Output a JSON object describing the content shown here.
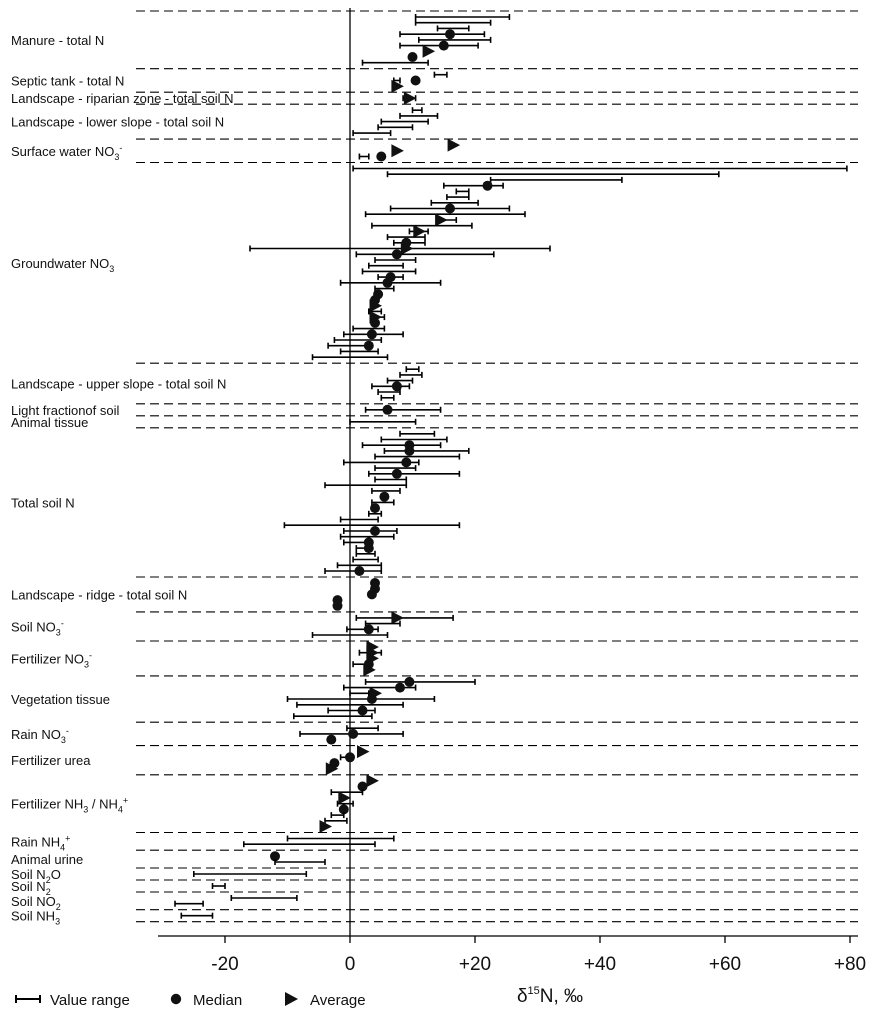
{
  "chart_data": {
    "type": "range",
    "xlabel_main": "δ",
    "xlabel_sup": "15",
    "xlabel_rest": "N, ‰",
    "xlim": [
      -30,
      80
    ],
    "xticks": [
      -20,
      0,
      20,
      40,
      60,
      80
    ],
    "xtick_labels": [
      "-20",
      "0",
      "+20",
      "+40",
      "+60",
      "+80"
    ],
    "legend": [
      {
        "symbol": "range",
        "label": "Value range"
      },
      {
        "symbol": "median",
        "label": "Median"
      },
      {
        "symbol": "average",
        "label": "Average"
      }
    ],
    "groups": [
      {
        "label": "Manure - total N",
        "rows": [
          {
            "min": 10.5,
            "max": 25.5
          },
          {
            "min": 10.5,
            "max": 22.5
          },
          {
            "min": 14,
            "max": 19
          },
          {
            "min": 8,
            "max": 21.5,
            "median": 16
          },
          {
            "min": 11,
            "max": 22.5
          },
          {
            "min": 8,
            "max": 20.5,
            "median": 15
          },
          {
            "average": 12.5
          },
          {
            "median": 10
          },
          {
            "min": 2,
            "max": 12.5
          }
        ]
      },
      {
        "label": "Septic tank - total N",
        "rows": [
          {
            "min": 13.5,
            "max": 15.5
          },
          {
            "min": 7,
            "max": 8,
            "median": 10.5
          },
          {
            "average": 7.5
          }
        ]
      },
      {
        "label": "Landscape - riparian zone - total soil N",
        "rows": [
          {
            "min": 8.5,
            "max": 10.5,
            "average": 9.5
          }
        ]
      },
      {
        "label": "Landscape - lower slope - total soil N",
        "rows": [
          {
            "min": 10,
            "max": 11.5
          },
          {
            "min": 8,
            "max": 14
          },
          {
            "min": 5,
            "max": 12.5
          },
          {
            "min": 4.5,
            "max": 10
          },
          {
            "min": 0.5,
            "max": 6.5
          }
        ]
      },
      {
        "label": "Surface water NO3-",
        "rows": [
          {
            "average": 16.5
          },
          {
            "average": 7.5
          },
          {
            "min": 1.5,
            "max": 3,
            "median": 5
          }
        ]
      },
      {
        "label": "Groundwater NO3",
        "rows": [
          {
            "min": 0.5,
            "max": 79.5
          },
          {
            "min": 6,
            "max": 59
          },
          {
            "min": 22.5,
            "max": 43.5
          },
          {
            "min": 15,
            "max": 24.5,
            "median": 22
          },
          {
            "min": 17,
            "max": 19
          },
          {
            "min": 15.5,
            "max": 19
          },
          {
            "min": 13,
            "max": 20.5
          },
          {
            "min": 6.5,
            "max": 25.5,
            "median": 16
          },
          {
            "min": 2.5,
            "max": 28
          },
          {
            "min": 14,
            "max": 17,
            "average": 14.5
          },
          {
            "min": 3.5,
            "max": 19.5
          },
          {
            "min": 9.5,
            "max": 12.5,
            "average": 11
          },
          {
            "min": 6,
            "max": 12
          },
          {
            "min": 7,
            "max": 12,
            "median": 9
          },
          {
            "min": -16,
            "max": 32,
            "average": 9
          },
          {
            "min": 1,
            "max": 23,
            "median": 7.5
          },
          {
            "min": 4,
            "max": 10.5
          },
          {
            "min": 3,
            "max": 8.5
          },
          {
            "min": 2,
            "max": 10.5
          },
          {
            "min": 4.5,
            "max": 8.5,
            "median": 6.5
          },
          {
            "min": -1.5,
            "max": 14.5,
            "median": 6
          },
          {
            "min": 4,
            "max": 7
          },
          {
            "median": 4.5
          },
          {
            "median": 4
          },
          {
            "average": 4
          },
          {
            "min": 3,
            "max": 5
          },
          {
            "min": 3.5,
            "max": 5.5,
            "average": 4
          },
          {
            "median": 4
          },
          {
            "min": 0.5,
            "max": 5.5
          },
          {
            "min": -1,
            "max": 8.5,
            "median": 3.5
          },
          {
            "min": -2.5,
            "max": 5
          },
          {
            "min": -3.5,
            "max": 3,
            "median": 3
          },
          {
            "min": -1.5,
            "max": 4.5
          },
          {
            "min": -6,
            "max": 6
          }
        ]
      },
      {
        "label": "Landscape - upper slope - total soil N",
        "rows": [
          {
            "min": 9,
            "max": 11
          },
          {
            "min": 8,
            "max": 11.5
          },
          {
            "min": 6,
            "max": 10
          },
          {
            "min": 3.5,
            "max": 9.5,
            "median": 7.5
          },
          {
            "min": 4.5,
            "max": 8
          },
          {
            "min": 5,
            "max": 7
          }
        ]
      },
      {
        "label": "Light fractionof soil",
        "rows": [
          {
            "min": 2.5,
            "max": 14.5,
            "median": 6
          }
        ]
      },
      {
        "label": "Animal tissue",
        "rows": [
          {
            "min": 0,
            "max": 10.5
          }
        ]
      },
      {
        "label": "Total soil N",
        "rows": [
          {
            "min": 8,
            "max": 13.5
          },
          {
            "min": 5,
            "max": 15.5
          },
          {
            "min": 2,
            "max": 14.5,
            "median": 9.5
          },
          {
            "min": 5.5,
            "max": 19,
            "median": 9.5
          },
          {
            "min": 4,
            "max": 17.5
          },
          {
            "min": -1,
            "max": 11,
            "median": 9
          },
          {
            "min": 4,
            "max": 10.5
          },
          {
            "min": 3,
            "max": 17.5,
            "median": 7.5
          },
          {
            "min": 4,
            "max": 9
          },
          {
            "min": -4,
            "max": 9
          },
          {
            "min": 3.5,
            "max": 8
          },
          {
            "median": 5.5
          },
          {
            "min": 3.5,
            "max": 7
          },
          {
            "median": 4
          },
          {
            "min": 3,
            "max": 5
          },
          {
            "min": -1.5,
            "max": 4.5
          },
          {
            "min": -10.5,
            "max": 17.5
          },
          {
            "min": -1,
            "max": 7.5,
            "median": 4
          },
          {
            "min": -1.5,
            "max": 7
          },
          {
            "min": -1,
            "max": 3.5,
            "median": 3
          },
          {
            "min": 1,
            "max": 3.5,
            "median": 3
          },
          {
            "min": 1,
            "max": 4
          },
          {
            "min": 0.5,
            "max": 4.5
          },
          {
            "min": -2,
            "max": 5
          },
          {
            "min": -4,
            "max": 5,
            "median": 1.5
          }
        ]
      },
      {
        "label": "Landscape  - ridge - total soil N",
        "rows": [
          {
            "median": 4
          },
          {
            "median": 4
          },
          {
            "median": 3.5
          },
          {
            "median": -2
          },
          {
            "median": -2
          }
        ]
      },
      {
        "label": "Soil NO3-",
        "rows": [
          {
            "min": 1,
            "max": 16.5,
            "average": 7.5
          },
          {
            "min": 2.5,
            "max": 8
          },
          {
            "min": -0.5,
            "max": 4.5,
            "median": 3
          },
          {
            "min": -6,
            "max": 6
          }
        ]
      },
      {
        "label": "Fertilizer NO3-",
        "rows": [
          {
            "average": 3.5
          },
          {
            "min": 1.5,
            "max": 5,
            "average": 3.5
          },
          {
            "average": 3.5
          },
          {
            "min": 0.5,
            "max": 3,
            "median": 3
          },
          {
            "average": 3
          }
        ]
      },
      {
        "label": "Vegetation tissue",
        "rows": [
          {
            "min": 2.5,
            "max": 20,
            "median": 9.5
          },
          {
            "min": -1,
            "max": 10.5,
            "median": 8
          },
          {
            "min": 0,
            "max": 3,
            "average": 4
          },
          {
            "min": -10,
            "max": 13.5,
            "median": 3.5
          },
          {
            "min": -8.5,
            "max": 8.5
          },
          {
            "min": -3.5,
            "max": 4,
            "median": 2
          },
          {
            "min": -9,
            "max": 3.5
          }
        ]
      },
      {
        "label": "Rain NO3-",
        "rows": [
          {
            "min": -0.5,
            "max": 4.5
          },
          {
            "min": -8,
            "max": 8.5,
            "median": 0.5
          },
          {
            "median": -3
          }
        ]
      },
      {
        "label": "Fertilizer urea",
        "rows": [
          {
            "average": 2
          },
          {
            "min": -1.5,
            "max": 0,
            "median": 0
          },
          {
            "median": -2.5
          },
          {
            "average": -3
          }
        ]
      },
      {
        "label": "Fertilizer NH3 / NH4+",
        "rows": [
          {
            "average": 3.5
          },
          {
            "median": 2
          },
          {
            "min": -3,
            "max": 2
          },
          {
            "average": -1
          },
          {
            "min": -2,
            "max": 0.5
          },
          {
            "median": -1
          },
          {
            "min": -3,
            "max": -1
          },
          {
            "min": -4,
            "max": -0.5
          },
          {
            "average": -4
          }
        ]
      },
      {
        "label": "Rain NH4+",
        "rows": [
          {
            "min": -10,
            "max": 7
          },
          {
            "min": -17,
            "max": 4
          }
        ]
      },
      {
        "label": "Animal urine",
        "rows": [
          {
            "min": -12.5,
            "max": -12,
            "median": -12
          },
          {
            "min": -12,
            "max": -4
          }
        ]
      },
      {
        "label": "Soil N2O",
        "rows": [
          {
            "min": -25,
            "max": -7
          }
        ]
      },
      {
        "label": "Soil N2",
        "rows": [
          {
            "min": -22,
            "max": -20
          }
        ]
      },
      {
        "label": "Soil NO2",
        "rows": [
          {
            "min": -19,
            "max": -8.5
          },
          {
            "min": -28,
            "max": -23.5
          }
        ]
      },
      {
        "label": "Soil NH3",
        "rows": [
          {
            "min": -27,
            "max": -22
          }
        ]
      }
    ]
  },
  "category_labels": [
    {
      "text": "Manure - total N"
    },
    {
      "text": "Septic tank - total N"
    },
    {
      "text": "Landscape - riparian zone - total soil N"
    },
    {
      "text": "Landscape - lower slope - total soil N"
    },
    {
      "text": "Surface water NO",
      "sub": "3",
      "sup": "-"
    },
    {
      "text": "Groundwater NO",
      "sub": "3"
    },
    {
      "text": "Landscape - upper slope - total soil N"
    },
    {
      "text": "Light fractionof soil"
    },
    {
      "text": "Animal tissue"
    },
    {
      "text": "Total soil N"
    },
    {
      "text": "Landscape  - ridge - total soil N"
    },
    {
      "text": "Soil NO",
      "sub": "3",
      "sup": "-"
    },
    {
      "text": "Fertilizer NO",
      "sub": "3",
      "sup": "-"
    },
    {
      "text": "Vegetation tissue"
    },
    {
      "text": "Rain NO",
      "sub": "3",
      "sup": "-"
    },
    {
      "text": "Fertilizer urea"
    },
    {
      "text": "Fertilizer NH",
      "sub": "3",
      "mid": " / NH",
      "sub2": "4",
      "sup2": "+"
    },
    {
      "text": "Rain NH",
      "sub": "4",
      "sup": "+"
    },
    {
      "text": "Animal urine"
    },
    {
      "text": "Soil N",
      "sub": "2",
      "tail": "O"
    },
    {
      "text": "Soil N",
      "sub": "2"
    },
    {
      "text": "Soil NO",
      "sub": "2"
    },
    {
      "text": "Soil NH",
      "sub": "3"
    }
  ]
}
